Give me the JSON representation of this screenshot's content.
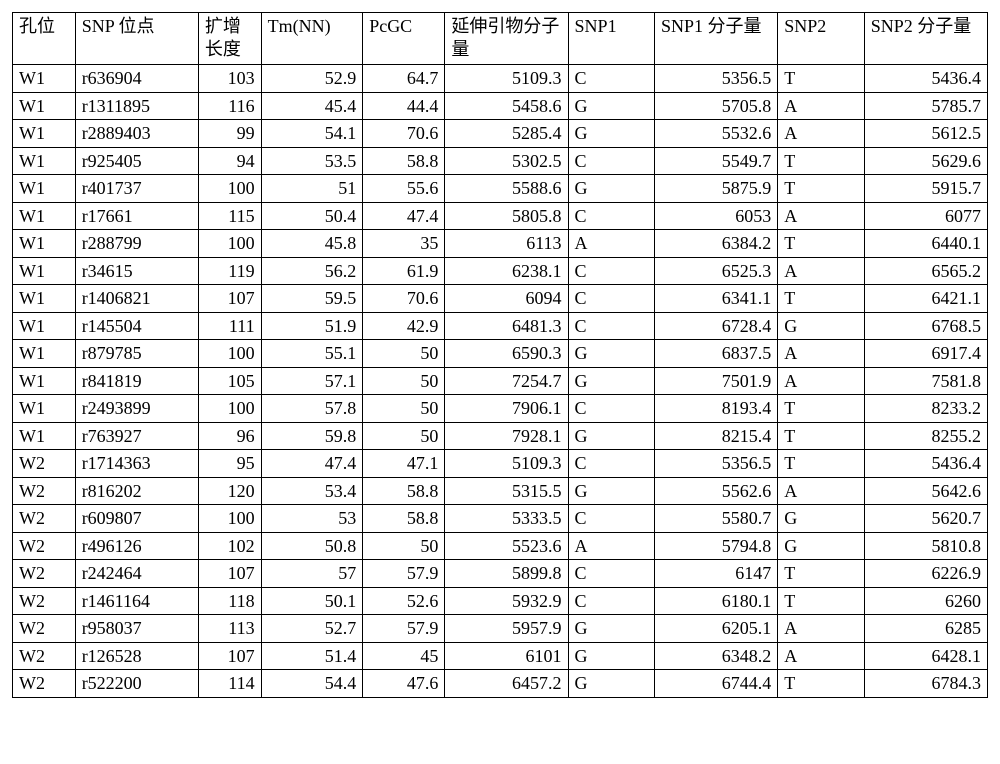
{
  "table": {
    "columns": [
      {
        "label": "孔位",
        "align": "txt"
      },
      {
        "label": "SNP 位点",
        "align": "txt"
      },
      {
        "label": "扩增长度",
        "align": "num"
      },
      {
        "label": "Tm(NN)",
        "align": "num"
      },
      {
        "label": "PcGC",
        "align": "num"
      },
      {
        "label": "延伸引物分子量",
        "align": "num"
      },
      {
        "label": "SNP1",
        "align": "txt"
      },
      {
        "label": "SNP1 分子量",
        "align": "num"
      },
      {
        "label": "SNP2",
        "align": "txt"
      },
      {
        "label": "SNP2 分子量",
        "align": "num"
      }
    ],
    "rows": [
      [
        "W1",
        "r636904",
        "103",
        "52.9",
        "64.7",
        "5109.3",
        "C",
        "5356.5",
        "T",
        "5436.4"
      ],
      [
        "W1",
        "r1311895",
        "116",
        "45.4",
        "44.4",
        "5458.6",
        "G",
        "5705.8",
        "A",
        "5785.7"
      ],
      [
        "W1",
        "r2889403",
        "99",
        "54.1",
        "70.6",
        "5285.4",
        "G",
        "5532.6",
        "A",
        "5612.5"
      ],
      [
        "W1",
        "r925405",
        "94",
        "53.5",
        "58.8",
        "5302.5",
        "C",
        "5549.7",
        "T",
        "5629.6"
      ],
      [
        "W1",
        "r401737",
        "100",
        "51",
        "55.6",
        "5588.6",
        "G",
        "5875.9",
        "T",
        "5915.7"
      ],
      [
        "W1",
        "r17661",
        "115",
        "50.4",
        "47.4",
        "5805.8",
        "C",
        "6053",
        "A",
        "6077"
      ],
      [
        "W1",
        "r288799",
        "100",
        "45.8",
        "35",
        "6113",
        "A",
        "6384.2",
        "T",
        "6440.1"
      ],
      [
        "W1",
        "r34615",
        "119",
        "56.2",
        "61.9",
        "6238.1",
        "C",
        "6525.3",
        "A",
        "6565.2"
      ],
      [
        "W1",
        "r1406821",
        "107",
        "59.5",
        "70.6",
        "6094",
        "C",
        "6341.1",
        "T",
        "6421.1"
      ],
      [
        "W1",
        "r145504",
        "111",
        "51.9",
        "42.9",
        "6481.3",
        "C",
        "6728.4",
        "G",
        "6768.5"
      ],
      [
        "W1",
        "r879785",
        "100",
        "55.1",
        "50",
        "6590.3",
        "G",
        "6837.5",
        "A",
        "6917.4"
      ],
      [
        "W1",
        "r841819",
        "105",
        "57.1",
        "50",
        "7254.7",
        "G",
        "7501.9",
        "A",
        "7581.8"
      ],
      [
        "W1",
        "r2493899",
        "100",
        "57.8",
        "50",
        "7906.1",
        "C",
        "8193.4",
        "T",
        "8233.2"
      ],
      [
        "W1",
        "r763927",
        "96",
        "59.8",
        "50",
        "7928.1",
        "G",
        "8215.4",
        "T",
        "8255.2"
      ],
      [
        "W2",
        "r1714363",
        "95",
        "47.4",
        "47.1",
        "5109.3",
        "C",
        "5356.5",
        "T",
        "5436.4"
      ],
      [
        "W2",
        "r816202",
        "120",
        "53.4",
        "58.8",
        "5315.5",
        "G",
        "5562.6",
        "A",
        "5642.6"
      ],
      [
        "W2",
        "r609807",
        "100",
        "53",
        "58.8",
        "5333.5",
        "C",
        "5580.7",
        "G",
        "5620.7"
      ],
      [
        "W2",
        "r496126",
        "102",
        "50.8",
        "50",
        "5523.6",
        "A",
        "5794.8",
        "G",
        "5810.8"
      ],
      [
        "W2",
        "r242464",
        "107",
        "57",
        "57.9",
        "5899.8",
        "C",
        "6147",
        "T",
        "6226.9"
      ],
      [
        "W2",
        "r1461164",
        "118",
        "50.1",
        "52.6",
        "5932.9",
        "C",
        "6180.1",
        "T",
        "6260"
      ],
      [
        "W2",
        "r958037",
        "113",
        "52.7",
        "57.9",
        "5957.9",
        "G",
        "6205.1",
        "A",
        "6285"
      ],
      [
        "W2",
        "r126528",
        "107",
        "51.4",
        "45",
        "6101",
        "G",
        "6348.2",
        "A",
        "6428.1"
      ],
      [
        "W2",
        "r522200",
        "114",
        "54.4",
        "47.6",
        "6457.2",
        "G",
        "6744.4",
        "T",
        "6784.3"
      ]
    ]
  }
}
